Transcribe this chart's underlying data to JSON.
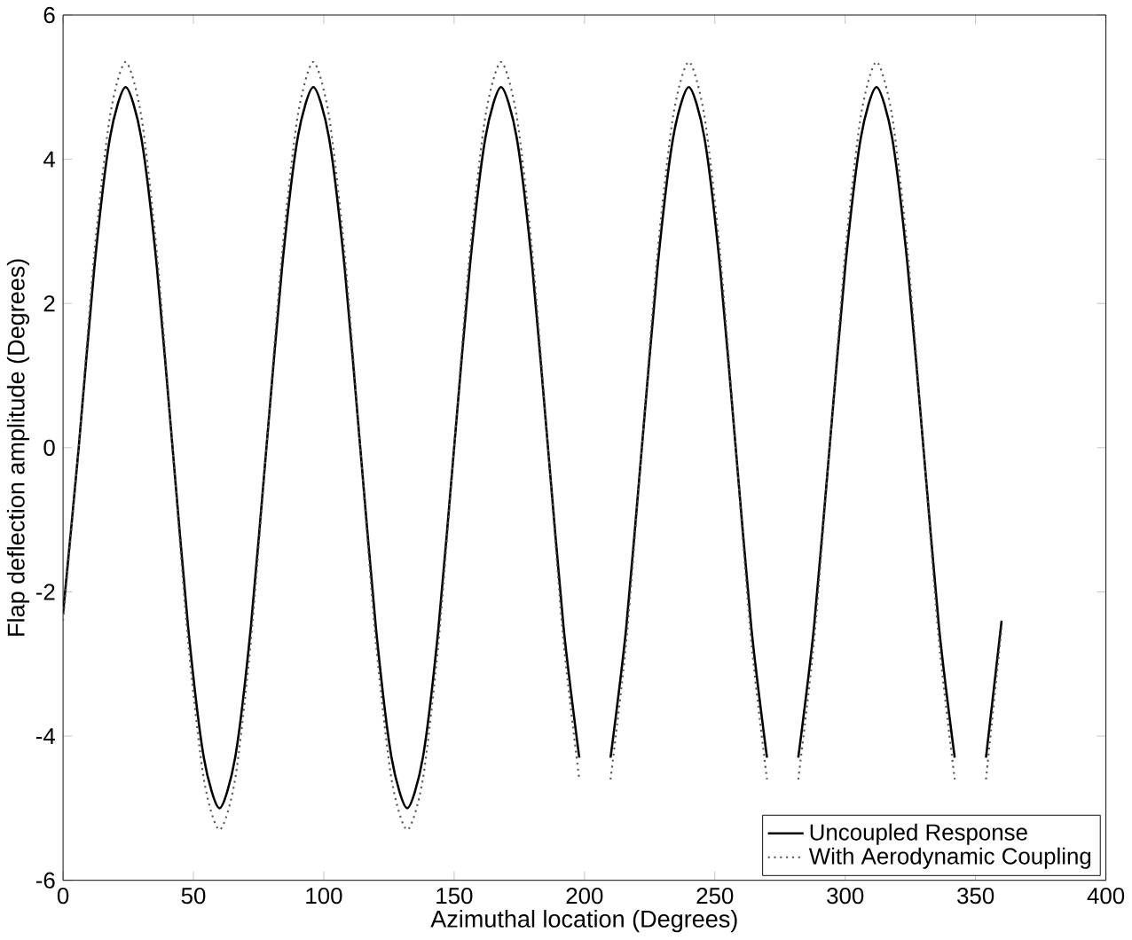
{
  "chart_data": {
    "type": "line",
    "xlabel": "Azimuthal location (Degrees)",
    "ylabel": "Flap deflection amplitude (Degrees)",
    "x": [
      0,
      6,
      12,
      18,
      24,
      30,
      36,
      42,
      48,
      54,
      60,
      66,
      72,
      78,
      84,
      90,
      96,
      102,
      108,
      114,
      120,
      126,
      132,
      138,
      144,
      150,
      156,
      162,
      168,
      174,
      180,
      186,
      192,
      198,
      204,
      210,
      216,
      222,
      228,
      234,
      240,
      246,
      252,
      258,
      264,
      270,
      276,
      282,
      288,
      294,
      300,
      306,
      312,
      318,
      324,
      330,
      336,
      342,
      348,
      354,
      360
    ],
    "series": [
      {
        "name": "Uncoupled Response",
        "color": "#000000",
        "line_style": "solid",
        "values": [
          -2.3,
          0,
          2.5,
          4.3,
          5,
          4.3,
          2.5,
          0,
          -2.5,
          -4.3,
          -5,
          -4.3,
          -2.5,
          0,
          2.5,
          4.3,
          5,
          4.3,
          2.5,
          0,
          -2.5,
          -4.3,
          -5,
          -4.3,
          -2.5,
          0,
          2.5,
          4.3,
          5,
          4.3,
          2.5,
          0,
          -2.5,
          -4.3,
          null,
          -4.3,
          -2.5,
          0,
          2.5,
          4.3,
          5,
          4.3,
          2.5,
          0,
          -2.5,
          -4.3,
          null,
          -4.3,
          -2.5,
          0,
          2.5,
          4.3,
          5,
          4.3,
          2.5,
          0,
          -2.5,
          -4.3,
          null,
          -4.3,
          -2.4
        ]
      },
      {
        "name": "With Aerodynamic Coupling",
        "color": "#555555",
        "line_style": "dotted",
        "values": [
          -2.4,
          0,
          2.7,
          4.6,
          5.35,
          4.6,
          2.7,
          0,
          -2.7,
          -4.6,
          -5.3,
          -4.6,
          -2.7,
          0,
          2.7,
          4.6,
          5.35,
          4.6,
          2.7,
          0,
          -2.7,
          -4.6,
          -5.3,
          -4.6,
          -2.7,
          0,
          2.7,
          4.6,
          5.35,
          4.6,
          2.7,
          0,
          -2.7,
          -4.6,
          null,
          -4.6,
          -2.7,
          0,
          2.7,
          4.6,
          5.35,
          4.6,
          2.7,
          0,
          -2.7,
          -4.6,
          null,
          -4.6,
          -2.7,
          0,
          2.7,
          4.6,
          5.35,
          4.6,
          2.7,
          0,
          -2.7,
          -4.6,
          null,
          -4.6,
          -2.5
        ]
      }
    ],
    "xlim": [
      0,
      400
    ],
    "ylim": [
      -6,
      6
    ],
    "xticks": [
      0,
      50,
      100,
      150,
      200,
      250,
      300,
      350,
      400
    ],
    "yticks": [
      -6,
      -4,
      -2,
      0,
      2,
      4,
      6
    ],
    "legend": "bottom right",
    "grid": false
  }
}
